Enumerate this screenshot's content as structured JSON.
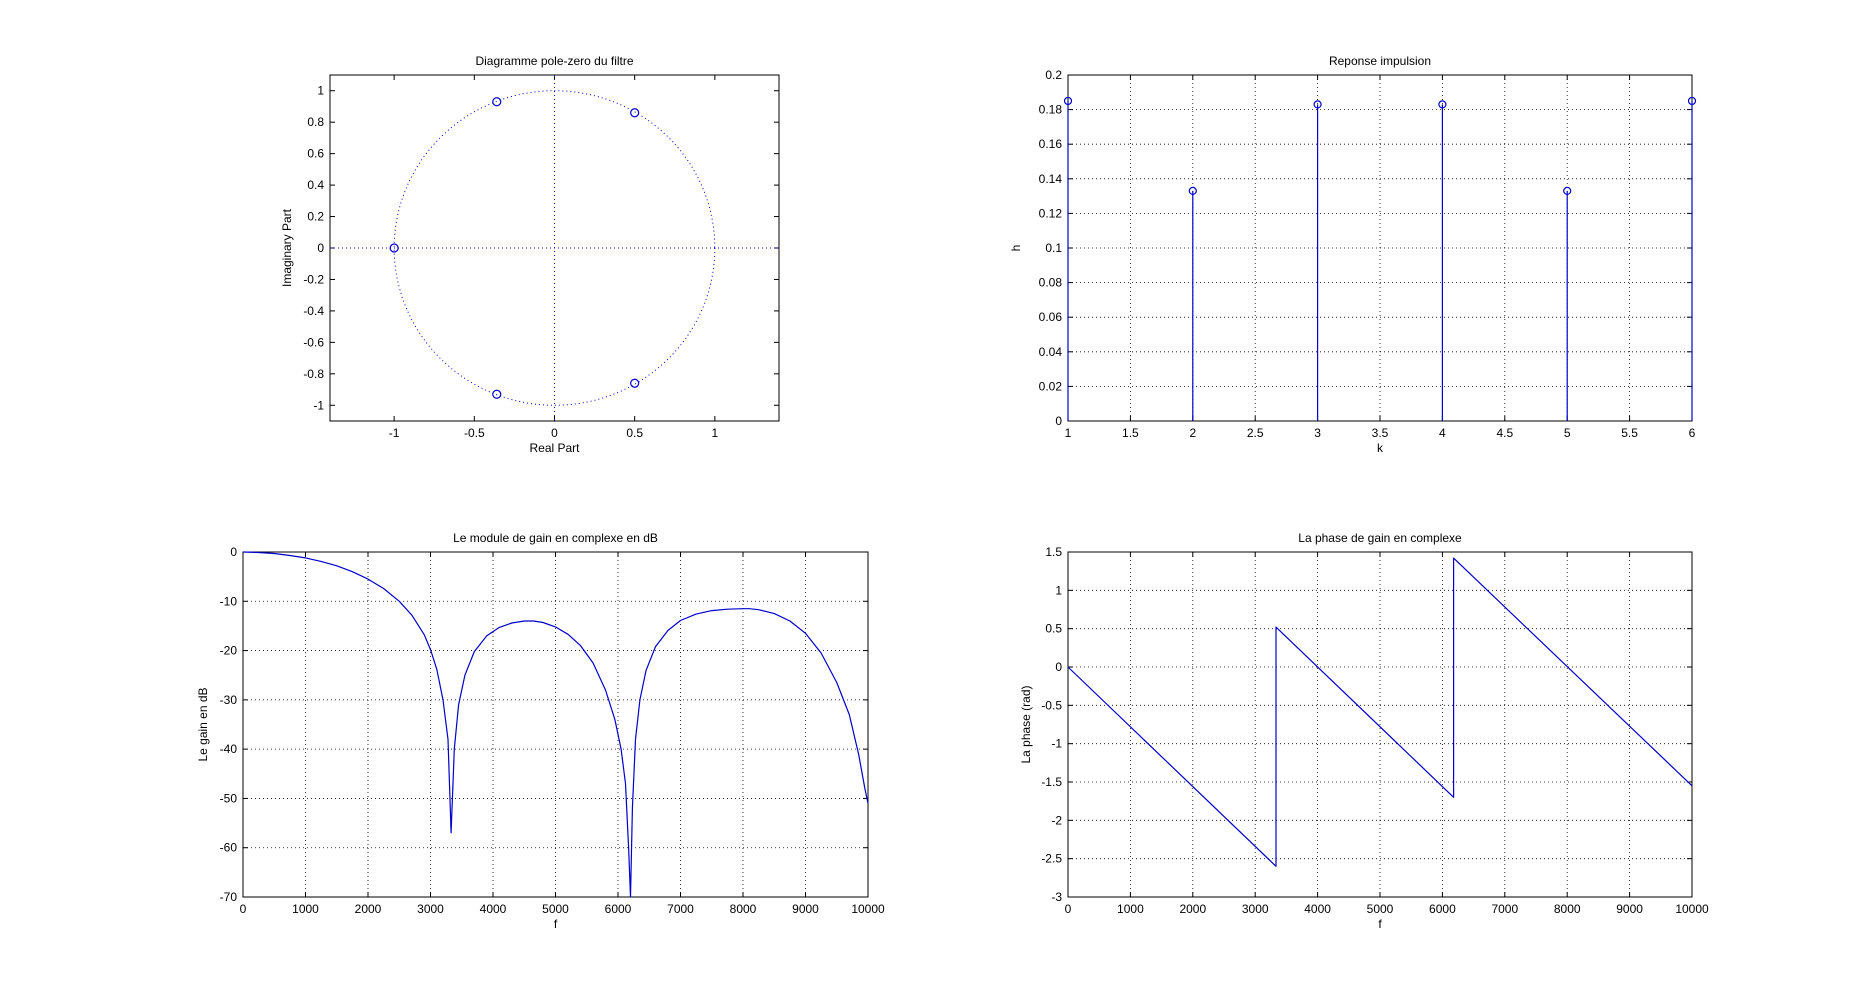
{
  "chart_data": [
    {
      "type": "scatter",
      "subtype": "pole-zero",
      "title": "Diagramme pole-zero du filtre",
      "xlabel": "Real Part",
      "ylabel": "Imaginary Part",
      "xlim": [
        -1.4,
        1.4
      ],
      "ylim": [
        -1.1,
        1.1
      ],
      "xticks": [
        -1,
        -0.5,
        0,
        0.5,
        1
      ],
      "xtick_labels": [
        "-1",
        "-0.5",
        "0",
        "0.5",
        "1"
      ],
      "yticks": [
        -1,
        -0.8,
        -0.6,
        -0.4,
        -0.2,
        0,
        0.2,
        0.4,
        0.6,
        0.8,
        1
      ],
      "ytick_labels": [
        "-1",
        "-0.8",
        "-0.6",
        "-0.4",
        "-0.2",
        "0",
        "0.2",
        "0.4",
        "0.6",
        "0.8",
        "1"
      ],
      "grid": false,
      "unit_circle": true,
      "zeros": [
        {
          "x": -1,
          "y": 0
        },
        {
          "x": -0.36,
          "y": 0.93
        },
        {
          "x": -0.36,
          "y": -0.93
        },
        {
          "x": 0.5,
          "y": 0.86
        },
        {
          "x": 0.5,
          "y": -0.86
        }
      ],
      "color": "#0000cc"
    },
    {
      "type": "stem",
      "title": "Reponse impulsion",
      "xlabel": "k",
      "ylabel": "h",
      "xlim": [
        1,
        6
      ],
      "ylim": [
        0,
        0.2
      ],
      "xticks": [
        1,
        1.5,
        2,
        2.5,
        3,
        3.5,
        4,
        4.5,
        5,
        5.5,
        6
      ],
      "xtick_labels": [
        "1",
        "1.5",
        "2",
        "2.5",
        "3",
        "3.5",
        "4",
        "4.5",
        "5",
        "5.5",
        "6"
      ],
      "yticks": [
        0,
        0.02,
        0.04,
        0.06,
        0.08,
        0.1,
        0.12,
        0.14,
        0.16,
        0.18,
        0.2
      ],
      "ytick_labels": [
        "0",
        "0.02",
        "0.04",
        "0.06",
        "0.08",
        "0.1",
        "0.12",
        "0.14",
        "0.16",
        "0.18",
        "0.2"
      ],
      "grid": true,
      "x": [
        1,
        2,
        3,
        4,
        5,
        6
      ],
      "values": [
        0.185,
        0.133,
        0.183,
        0.183,
        0.133,
        0.185
      ],
      "color": "#0000cc"
    },
    {
      "type": "line",
      "title": "Le module de gain en complexe en dB",
      "xlabel": "f",
      "ylabel": "Le gain en dB",
      "xlim": [
        0,
        10000
      ],
      "ylim": [
        -70,
        0
      ],
      "xticks": [
        0,
        1000,
        2000,
        3000,
        4000,
        5000,
        6000,
        7000,
        8000,
        9000,
        10000
      ],
      "xtick_labels": [
        "0",
        "1000",
        "2000",
        "3000",
        "4000",
        "5000",
        "6000",
        "7000",
        "8000",
        "9000",
        "10000"
      ],
      "yticks": [
        -70,
        -60,
        -50,
        -40,
        -30,
        -20,
        -10,
        0
      ],
      "ytick_labels": [
        "-70",
        "-60",
        "-50",
        "-40",
        "-30",
        "-20",
        "-10",
        "0"
      ],
      "grid": true,
      "x": [
        0,
        250,
        500,
        750,
        1000,
        1250,
        1500,
        1750,
        2000,
        2250,
        2500,
        2700,
        2900,
        3000,
        3100,
        3200,
        3280,
        3330,
        3380,
        3450,
        3550,
        3700,
        3900,
        4100,
        4300,
        4500,
        4650,
        4800,
        5000,
        5200,
        5400,
        5600,
        5800,
        5950,
        6050,
        6120,
        6170,
        6200,
        6230,
        6280,
        6350,
        6450,
        6600,
        6800,
        7000,
        7250,
        7500,
        7750,
        8000,
        8100,
        8250,
        8500,
        8750,
        9000,
        9250,
        9500,
        9700,
        9850,
        9950,
        10000
      ],
      "values": [
        0,
        -0.1,
        -0.3,
        -0.7,
        -1.2,
        -1.9,
        -2.8,
        -4.0,
        -5.5,
        -7.4,
        -10.0,
        -12.8,
        -16.8,
        -19.8,
        -23.8,
        -30.0,
        -38.0,
        -57.0,
        -40.0,
        -31.0,
        -25.0,
        -20.2,
        -17.0,
        -15.3,
        -14.4,
        -14.0,
        -14.0,
        -14.3,
        -15.2,
        -16.7,
        -19.0,
        -22.5,
        -28.0,
        -34.0,
        -40.0,
        -47.0,
        -60.0,
        -70.0,
        -52.0,
        -38.0,
        -30.0,
        -24.0,
        -19.2,
        -15.9,
        -13.9,
        -12.6,
        -11.9,
        -11.6,
        -11.5,
        -11.5,
        -11.7,
        -12.5,
        -14.0,
        -16.5,
        -20.5,
        -26.5,
        -33.0,
        -41.0,
        -48.0,
        -51.0
      ],
      "color": "#0000cc"
    },
    {
      "type": "line",
      "title": "La phase de gain en complexe",
      "xlabel": "f",
      "ylabel": "La phase (rad)",
      "xlim": [
        0,
        10000
      ],
      "ylim": [
        -3,
        1.5
      ],
      "xticks": [
        0,
        1000,
        2000,
        3000,
        4000,
        5000,
        6000,
        7000,
        8000,
        9000,
        10000
      ],
      "xtick_labels": [
        "0",
        "1000",
        "2000",
        "3000",
        "4000",
        "5000",
        "6000",
        "7000",
        "8000",
        "9000",
        "10000"
      ],
      "yticks": [
        -3,
        -2.5,
        -2,
        -1.5,
        -1,
        -0.5,
        0,
        0.5,
        1,
        1.5
      ],
      "ytick_labels": [
        "-3",
        "-2.5",
        "-2",
        "-1.5",
        "-1",
        "-0.5",
        "0",
        "0.5",
        "1",
        "1.5"
      ],
      "grid": true,
      "x": [
        0,
        3333,
        3333,
        6180,
        6180,
        10000
      ],
      "values": [
        0,
        -2.6,
        0.52,
        -1.7,
        1.42,
        -1.55
      ],
      "color": "#0000cc"
    }
  ]
}
